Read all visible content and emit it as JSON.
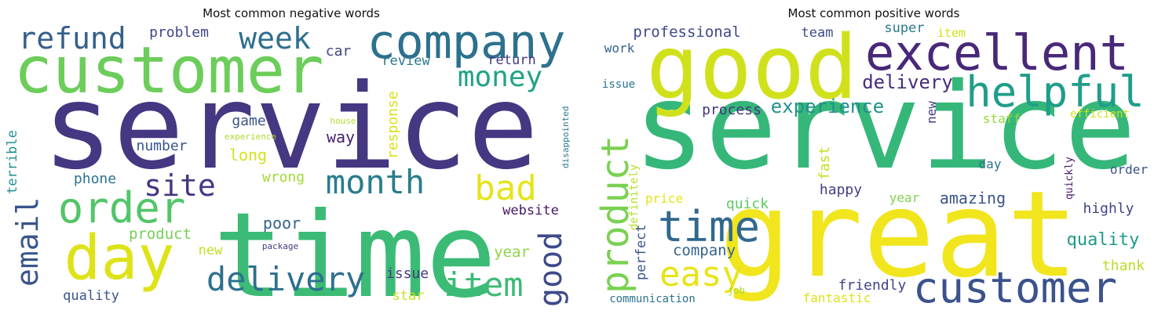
{
  "chart_data": [
    {
      "type": "wordcloud",
      "title": "Most common negative words",
      "words": [
        {
          "text": "service",
          "color": "#453781"
        },
        {
          "text": "time",
          "color": "#3bbb75"
        },
        {
          "text": "customer",
          "color": "#6ccd5a"
        },
        {
          "text": "company",
          "color": "#2c718e"
        },
        {
          "text": "day",
          "color": "#dde318"
        },
        {
          "text": "order",
          "color": "#52c569"
        },
        {
          "text": "delivery",
          "color": "#2d708e"
        },
        {
          "text": "month",
          "color": "#287d8e"
        },
        {
          "text": "item",
          "color": "#3bbb75"
        },
        {
          "text": "week",
          "color": "#2e6e8e"
        },
        {
          "text": "refund",
          "color": "#355f8d"
        },
        {
          "text": "money",
          "color": "#20a386"
        },
        {
          "text": "site",
          "color": "#453781"
        },
        {
          "text": "bad",
          "color": "#e5e419"
        },
        {
          "text": "email",
          "color": "#39558c"
        },
        {
          "text": "good",
          "color": "#3e4a89"
        },
        {
          "text": "problem",
          "color": "#3f4788"
        },
        {
          "text": "car",
          "color": "#414487"
        },
        {
          "text": "review",
          "color": "#2a788e"
        },
        {
          "text": "return",
          "color": "#443983"
        },
        {
          "text": "response",
          "color": "#d8e219"
        },
        {
          "text": "game",
          "color": "#3a538b"
        },
        {
          "text": "number",
          "color": "#3a548c"
        },
        {
          "text": "long",
          "color": "#d2e21b"
        },
        {
          "text": "way",
          "color": "#482173"
        },
        {
          "text": "phone",
          "color": "#2c728e"
        },
        {
          "text": "wrong",
          "color": "#a2da37"
        },
        {
          "text": "website",
          "color": "#481567"
        },
        {
          "text": "product",
          "color": "#75d054"
        },
        {
          "text": "poor",
          "color": "#33638d"
        },
        {
          "text": "new",
          "color": "#c2df23"
        },
        {
          "text": "package",
          "color": "#443a83"
        },
        {
          "text": "year",
          "color": "#8fd744"
        },
        {
          "text": "issue",
          "color": "#453882"
        },
        {
          "text": "star",
          "color": "#c8e020"
        },
        {
          "text": "quality",
          "color": "#3b528b"
        },
        {
          "text": "terrible",
          "color": "#218f8d"
        },
        {
          "text": "house",
          "color": "#b5de2b"
        },
        {
          "text": "experience",
          "color": "#aadc32"
        },
        {
          "text": "disappointed",
          "color": "#2a788e"
        }
      ]
    },
    {
      "type": "wordcloud",
      "title": "Most common positive words",
      "words": [
        {
          "text": "service",
          "color": "#35b779"
        },
        {
          "text": "great",
          "color": "#f1e51d"
        },
        {
          "text": "good",
          "color": "#d0e11c"
        },
        {
          "text": "excellent",
          "color": "#482878"
        },
        {
          "text": "helpful",
          "color": "#1f9e89"
        },
        {
          "text": "product",
          "color": "#7ad151"
        },
        {
          "text": "customer",
          "color": "#3b528b"
        },
        {
          "text": "time",
          "color": "#31688e"
        },
        {
          "text": "easy",
          "color": "#e7e419"
        },
        {
          "text": "delivery",
          "color": "#472c7a"
        },
        {
          "text": "experience",
          "color": "#21918c"
        },
        {
          "text": "professional",
          "color": "#3e4989"
        },
        {
          "text": "process",
          "color": "#46337e"
        },
        {
          "text": "company",
          "color": "#33638d"
        },
        {
          "text": "amazing",
          "color": "#3a548c"
        },
        {
          "text": "quality",
          "color": "#1f9a8a"
        },
        {
          "text": "highly",
          "color": "#404688"
        },
        {
          "text": "happy",
          "color": "#433e85"
        },
        {
          "text": "quick",
          "color": "#5ec962"
        },
        {
          "text": "team",
          "color": "#3d4d8a"
        },
        {
          "text": "super",
          "color": "#2a788e"
        },
        {
          "text": "item",
          "color": "#d5e21a"
        },
        {
          "text": "work",
          "color": "#355f8d"
        },
        {
          "text": "issue",
          "color": "#2c718e"
        },
        {
          "text": "new",
          "color": "#433d84"
        },
        {
          "text": "staff",
          "color": "#95d840"
        },
        {
          "text": "efficient",
          "color": "#d4e21a"
        },
        {
          "text": "fast",
          "color": "#c8e020"
        },
        {
          "text": "day",
          "color": "#2e6e8e"
        },
        {
          "text": "order",
          "color": "#3a548c"
        },
        {
          "text": "quickly",
          "color": "#481a6c"
        },
        {
          "text": "definitely",
          "color": "#b8de29"
        },
        {
          "text": "price",
          "color": "#e2e418"
        },
        {
          "text": "year",
          "color": "#7fd34e"
        },
        {
          "text": "perfect",
          "color": "#3b528b"
        },
        {
          "text": "friendly",
          "color": "#414487"
        },
        {
          "text": "thank",
          "color": "#bade28"
        },
        {
          "text": "job",
          "color": "#aadc32"
        },
        {
          "text": "fantastic",
          "color": "#dde318"
        },
        {
          "text": "communication",
          "color": "#2c728e"
        }
      ]
    }
  ]
}
